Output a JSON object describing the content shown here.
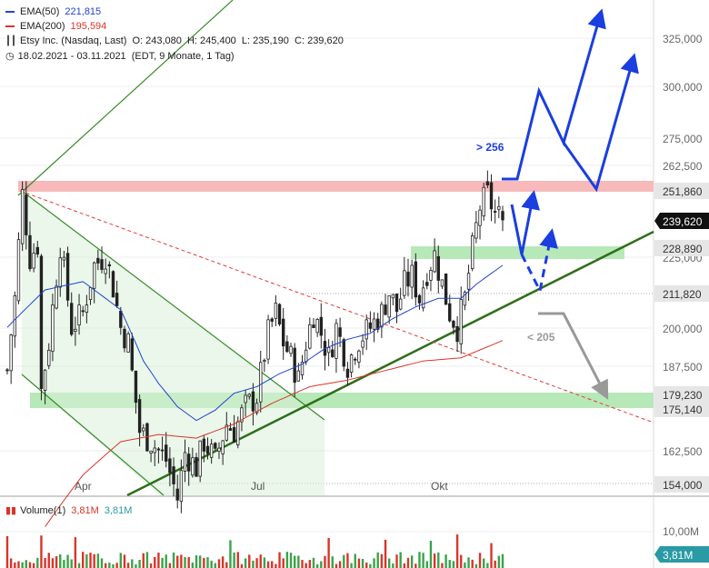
{
  "legend": {
    "ema50_label": "EMA(50)",
    "ema50_value": "221,815",
    "ema200_label": "EMA(200)",
    "ema200_value": "195,594",
    "instrument": "Etsy Inc. (Nasdaq, Last)",
    "ohlc": "O: 243,080  H: 245,400  L: 235,190  C: 239,620",
    "range": "18.02.2021 - 03.11.2021",
    "range_detail": "(EDT, 9 Monate, 1 Tag)"
  },
  "volume_legend": {
    "label": "Volume(1)",
    "value1": "3,81M",
    "value2": "3,81M"
  },
  "colors": {
    "ema50": "#2244cc",
    "ema200": "#d9352a",
    "up": "#222222",
    "bull_arrow": "#1a3ee0",
    "bear_arrow": "#999999",
    "trend": "#3a7a20",
    "resistance": "#f7b9b9",
    "support": "#b7e8b7"
  },
  "chart_data": {
    "type": "candlestick",
    "title": "Etsy Inc. (Nasdaq, Last)",
    "x_range": [
      "18.02.2021",
      "03.11.2021"
    ],
    "x_ticks": [
      "Apr",
      "Jul",
      "Okt"
    ],
    "y_ticks": [
      "325,000",
      "300,000",
      "275,000",
      "262,500",
      "250,000",
      "225,000",
      "200,000",
      "187,500",
      "162,500"
    ],
    "y_scale": "log",
    "ylim": [
      148,
      345
    ],
    "last": {
      "open": 243.08,
      "high": 245.4,
      "low": 235.19,
      "close": 239.62
    },
    "price_tags": [
      {
        "label": "251,860",
        "value": 251.86,
        "style": "grey"
      },
      {
        "label": "239,620",
        "value": 239.62,
        "style": "dark"
      },
      {
        "label": "228,890",
        "value": 228.89,
        "style": "grey"
      },
      {
        "label": "211,820",
        "value": 211.82,
        "style": "grey"
      },
      {
        "label": "179,230",
        "value": 179.23,
        "style": "grey"
      },
      {
        "label": "175,140",
        "value": 175.14,
        "style": "grey"
      },
      {
        "label": "154,000",
        "value": 154.0,
        "style": "grey"
      }
    ],
    "annotations": [
      {
        "text": "> 256"
      },
      {
        "text": "< 205"
      }
    ],
    "series": [
      {
        "name": "EMA(50)",
        "last": 221.815
      },
      {
        "name": "EMA(200)",
        "last": 195.594
      }
    ],
    "close_series": [
      [
        0,
        186
      ],
      [
        2,
        210
      ],
      [
        4,
        250
      ],
      [
        6,
        225
      ],
      [
        8,
        230
      ],
      [
        9,
        180
      ],
      [
        11,
        195
      ],
      [
        14,
        230
      ],
      [
        17,
        200
      ],
      [
        20,
        205
      ],
      [
        23,
        222
      ],
      [
        26,
        226
      ],
      [
        28,
        214
      ],
      [
        30,
        200
      ],
      [
        32,
        195
      ],
      [
        33,
        185
      ],
      [
        35,
        168
      ],
      [
        38,
        165
      ],
      [
        42,
        160
      ],
      [
        45,
        150
      ],
      [
        47,
        162
      ],
      [
        50,
        158
      ],
      [
        52,
        165
      ],
      [
        55,
        160
      ],
      [
        58,
        170
      ],
      [
        60,
        168
      ],
      [
        63,
        175
      ],
      [
        66,
        178
      ],
      [
        69,
        198
      ],
      [
        71,
        205
      ],
      [
        73,
        195
      ],
      [
        75,
        190
      ],
      [
        77,
        183
      ],
      [
        79,
        195
      ],
      [
        81,
        205
      ],
      [
        83,
        198
      ],
      [
        85,
        190
      ],
      [
        87,
        200
      ],
      [
        90,
        188
      ],
      [
        93,
        196
      ],
      [
        96,
        200
      ],
      [
        99,
        205
      ],
      [
        101,
        212
      ],
      [
        103,
        206
      ],
      [
        105,
        215
      ],
      [
        107,
        218
      ],
      [
        109,
        210
      ],
      [
        111,
        220
      ],
      [
        113,
        226
      ],
      [
        115,
        215
      ],
      [
        117,
        205
      ],
      [
        119,
        200
      ],
      [
        121,
        210
      ],
      [
        123,
        228
      ],
      [
        125,
        245
      ],
      [
        127,
        250
      ],
      [
        129,
        242
      ],
      [
        131,
        240
      ]
    ],
    "ema50_series": [
      [
        0,
        200
      ],
      [
        10,
        213
      ],
      [
        20,
        216
      ],
      [
        30,
        206
      ],
      [
        36,
        189
      ],
      [
        40,
        182
      ],
      [
        45,
        175
      ],
      [
        50,
        171
      ],
      [
        55,
        174
      ],
      [
        60,
        179
      ],
      [
        66,
        181
      ],
      [
        72,
        185
      ],
      [
        78,
        188
      ],
      [
        84,
        193
      ],
      [
        90,
        196
      ],
      [
        96,
        198
      ],
      [
        102,
        203
      ],
      [
        108,
        207
      ],
      [
        114,
        210
      ],
      [
        120,
        210
      ],
      [
        124,
        215
      ],
      [
        131,
        222
      ]
    ],
    "ema200_series": [
      [
        10,
        143
      ],
      [
        20,
        156
      ],
      [
        30,
        165
      ],
      [
        40,
        167
      ],
      [
        50,
        166
      ],
      [
        60,
        170
      ],
      [
        70,
        176
      ],
      [
        80,
        181
      ],
      [
        90,
        183
      ],
      [
        100,
        186
      ],
      [
        110,
        189
      ],
      [
        120,
        190
      ],
      [
        131,
        195.6
      ]
    ],
    "volume": {
      "ylim_label": "10,00M",
      "last_label": "3,81M",
      "last": 3.81
    }
  }
}
